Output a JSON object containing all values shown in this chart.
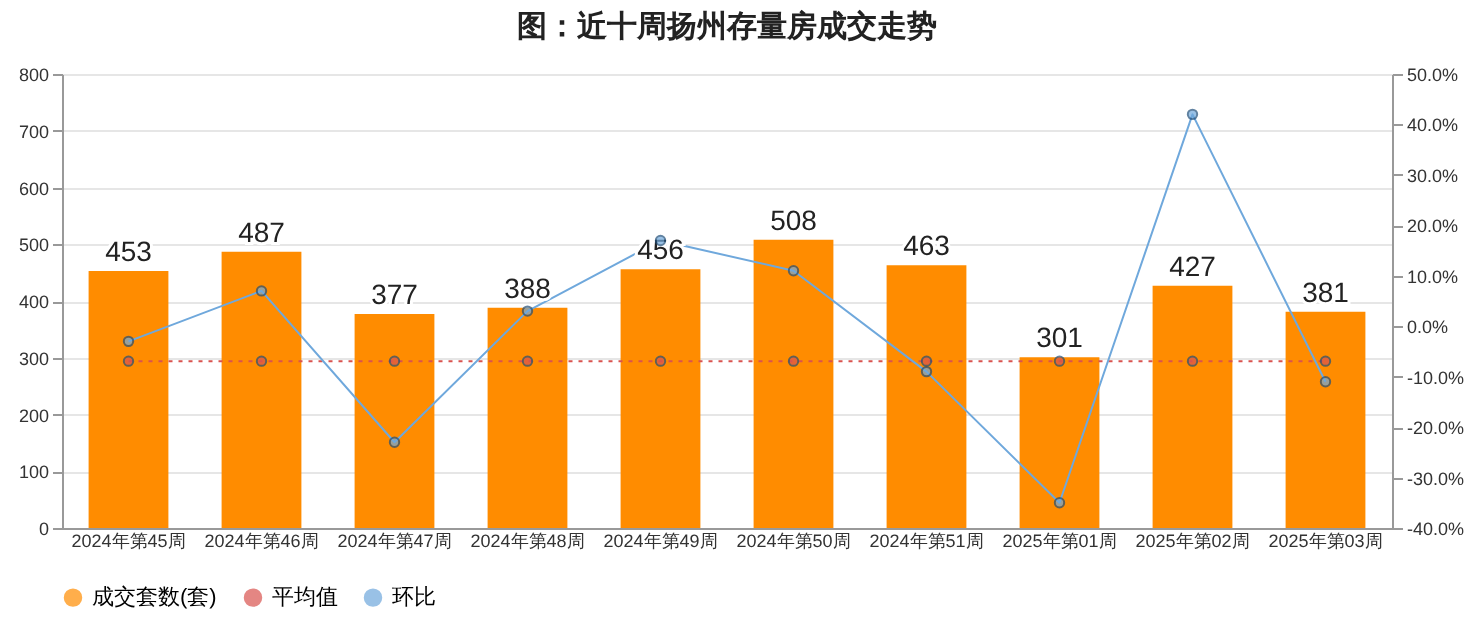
{
  "chart_data": {
    "type": "bar",
    "title": "图：近十周扬州存量房成交走势",
    "categories": [
      "2024年第45周",
      "2024年第46周",
      "2024年第47周",
      "2024年第48周",
      "2024年第49周",
      "2024年第50周",
      "2024年第51周",
      "2025年第01周",
      "2025年第02周",
      "2025年第03周"
    ],
    "series": [
      {
        "name": "成交套数(套)",
        "color": "#ff8c00",
        "values": [
          453,
          487,
          377,
          388,
          456,
          508,
          463,
          301,
          427,
          381
        ],
        "value_labels": [
          "453",
          "487",
          "377",
          "388",
          "456",
          "508",
          "463",
          "301",
          "427",
          "381"
        ]
      },
      {
        "name": "平均值",
        "type": "line",
        "color": "#d9534f",
        "line_style": "dotted",
        "values": [
          294,
          294,
          294,
          294,
          294,
          294,
          294,
          294,
          294,
          294
        ]
      },
      {
        "name": "环比",
        "type": "line",
        "axis": "y2",
        "line_style": "solid",
        "color": "#6fa8dc",
        "values": [
          -3,
          7,
          -23,
          3,
          17,
          11,
          -9,
          -35,
          42,
          -11
        ]
      }
    ],
    "ylim": [
      0,
      800
    ],
    "yticks": [
      0,
      100,
      200,
      300,
      400,
      500,
      600,
      700,
      800
    ],
    "y2lim": [
      -40,
      50
    ],
    "y2ticks": [
      {
        "value": 50,
        "label": "50.0%"
      },
      {
        "value": 40,
        "label": "40.0%"
      },
      {
        "value": 30,
        "label": "30.0%"
      },
      {
        "value": 20,
        "label": "20.0%"
      },
      {
        "value": 10,
        "label": "10.0%"
      },
      {
        "value": 0,
        "label": "0.0%"
      },
      {
        "value": -10,
        "label": "-10.0%"
      },
      {
        "value": -20,
        "label": "-20.0%"
      },
      {
        "value": -30,
        "label": "-30.0%"
      },
      {
        "value": -40,
        "label": "-40.0%"
      }
    ],
    "marker": "circle",
    "grid": "y",
    "legend": "bottom"
  }
}
